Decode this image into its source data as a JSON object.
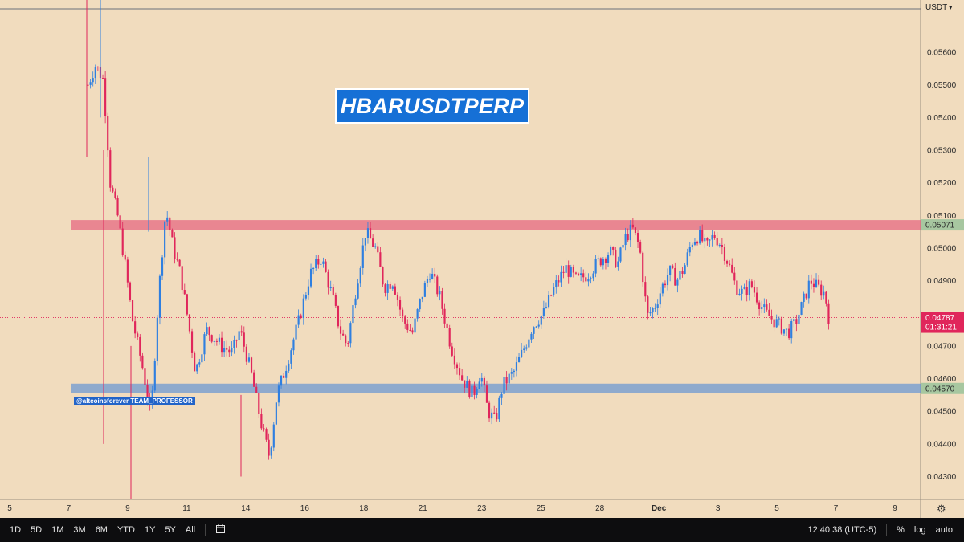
{
  "currency": {
    "label": "USDT",
    "icon": "chevron-down-icon"
  },
  "title_badge": "HBARUSDTPERP",
  "watermark": "@altcoinsforever TEAM_PROFESSOR",
  "colors": {
    "background": "#f1dcbe",
    "up_candle": "#2f7fe0",
    "down_candle": "#e0265b",
    "resistance_zone": "#e5577a",
    "support_zone": "#5b8fd6",
    "badge": "#1670d6"
  },
  "chart_data": {
    "type": "candlestick",
    "title": "HBARUSDTPERP",
    "y_axis": {
      "ylim": [
        0.0423,
        0.0576
      ],
      "ticks": [
        "0.05600",
        "0.05500",
        "0.05400",
        "0.05300",
        "0.05200",
        "0.05100",
        "0.05000",
        "0.04900",
        "0.04700",
        "0.04600",
        "0.04500",
        "0.04400",
        "0.04300"
      ]
    },
    "x_axis": {
      "ticks": [
        "5",
        "7",
        "9",
        "11",
        "14",
        "16",
        "18",
        "21",
        "23",
        "25",
        "28",
        "Dec",
        "3",
        "5",
        "7",
        "9"
      ]
    },
    "levels": [
      {
        "name": "resistance",
        "value": 0.05071,
        "label": "0.05071"
      },
      {
        "name": "support",
        "value": 0.0457,
        "label": "0.04570"
      }
    ],
    "current_price": {
      "value": 0.04787,
      "label": "0.04787",
      "countdown": "01:31:21"
    },
    "price_path": [
      [
        0,
        0.055
      ],
      [
        0.01,
        0.0556
      ],
      [
        0.02,
        0.0552
      ],
      [
        0.025,
        0.0538
      ],
      [
        0.03,
        0.052
      ],
      [
        0.04,
        0.051
      ],
      [
        0.05,
        0.0495
      ],
      [
        0.06,
        0.0478
      ],
      [
        0.075,
        0.0462
      ],
      [
        0.085,
        0.0448
      ],
      [
        0.095,
        0.0485
      ],
      [
        0.105,
        0.0512
      ],
      [
        0.115,
        0.05
      ],
      [
        0.125,
        0.0492
      ],
      [
        0.135,
        0.0478
      ],
      [
        0.145,
        0.0462
      ],
      [
        0.16,
        0.0475
      ],
      [
        0.18,
        0.047
      ],
      [
        0.195,
        0.0468
      ],
      [
        0.205,
        0.0475
      ],
      [
        0.22,
        0.0462
      ],
      [
        0.235,
        0.0445
      ],
      [
        0.245,
        0.0436
      ],
      [
        0.255,
        0.0455
      ],
      [
        0.265,
        0.0462
      ],
      [
        0.275,
        0.047
      ],
      [
        0.285,
        0.0478
      ],
      [
        0.3,
        0.0492
      ],
      [
        0.315,
        0.0497
      ],
      [
        0.33,
        0.0485
      ],
      [
        0.34,
        0.0475
      ],
      [
        0.35,
        0.047
      ],
      [
        0.362,
        0.0488
      ],
      [
        0.375,
        0.0505
      ],
      [
        0.388,
        0.05
      ],
      [
        0.4,
        0.0488
      ],
      [
        0.412,
        0.049
      ],
      [
        0.425,
        0.0478
      ],
      [
        0.438,
        0.0474
      ],
      [
        0.45,
        0.0485
      ],
      [
        0.462,
        0.0493
      ],
      [
        0.475,
        0.0485
      ],
      [
        0.49,
        0.047
      ],
      [
        0.505,
        0.046
      ],
      [
        0.52,
        0.0455
      ],
      [
        0.53,
        0.0462
      ],
      [
        0.54,
        0.045
      ],
      [
        0.55,
        0.0447
      ],
      [
        0.56,
        0.0458
      ],
      [
        0.575,
        0.0462
      ],
      [
        0.59,
        0.047
      ],
      [
        0.6,
        0.0476
      ],
      [
        0.615,
        0.048
      ],
      [
        0.63,
        0.0488
      ],
      [
        0.645,
        0.0494
      ],
      [
        0.66,
        0.049
      ],
      [
        0.675,
        0.0492
      ],
      [
        0.69,
        0.0496
      ],
      [
        0.705,
        0.0499
      ],
      [
        0.715,
        0.0495
      ],
      [
        0.725,
        0.0503
      ],
      [
        0.735,
        0.0506
      ],
      [
        0.745,
        0.05
      ],
      [
        0.755,
        0.0479
      ],
      [
        0.765,
        0.0482
      ],
      [
        0.775,
        0.0488
      ],
      [
        0.785,
        0.0493
      ],
      [
        0.795,
        0.049
      ],
      [
        0.805,
        0.0494
      ],
      [
        0.815,
        0.0502
      ],
      [
        0.825,
        0.0504
      ],
      [
        0.835,
        0.05
      ],
      [
        0.845,
        0.0504
      ],
      [
        0.855,
        0.0501
      ],
      [
        0.865,
        0.0495
      ],
      [
        0.875,
        0.0488
      ],
      [
        0.885,
        0.0486
      ],
      [
        0.895,
        0.0489
      ],
      [
        0.905,
        0.0484
      ],
      [
        0.915,
        0.048
      ],
      [
        0.925,
        0.0478
      ],
      [
        0.935,
        0.0476
      ],
      [
        0.945,
        0.0474
      ],
      [
        0.955,
        0.0477
      ],
      [
        0.965,
        0.0483
      ],
      [
        0.975,
        0.049
      ],
      [
        0.985,
        0.0488
      ],
      [
        0.995,
        0.0486
      ],
      [
        1.0,
        0.0479
      ]
    ]
  },
  "bottom_bar": {
    "ranges": [
      "1D",
      "5D",
      "1M",
      "3M",
      "6M",
      "YTD",
      "1Y",
      "5Y",
      "All"
    ],
    "time": "12:40:38 (UTC-5)",
    "percent": "%",
    "log": "log",
    "auto": "auto"
  }
}
